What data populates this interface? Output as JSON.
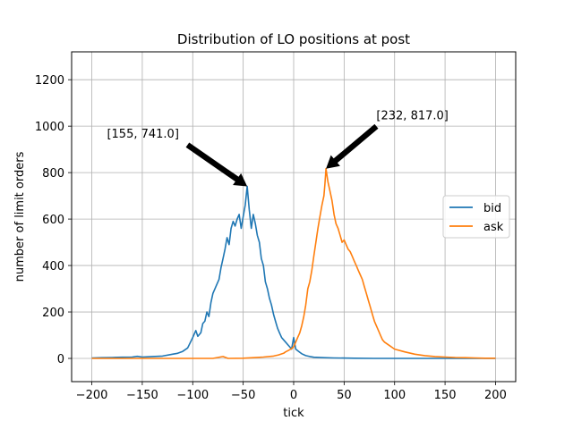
{
  "chart_data": {
    "type": "line",
    "title": "Distribution of LO positions at post",
    "xlabel": "tick",
    "ylabel": "number of limit orders",
    "xlim": [
      -220,
      220
    ],
    "ylim": [
      -100,
      1320
    ],
    "xticks": [
      -200,
      -150,
      -100,
      -50,
      0,
      50,
      100,
      150,
      200
    ],
    "yticks": [
      0,
      200,
      400,
      600,
      800,
      1000,
      1200
    ],
    "grid": true,
    "legend_position": "center-right",
    "series": [
      {
        "name": "bid",
        "color": "#1f77b4",
        "points": [
          [
            -200,
            2
          ],
          [
            -190,
            3
          ],
          [
            -180,
            4
          ],
          [
            -170,
            5
          ],
          [
            -160,
            6
          ],
          [
            -155,
            9
          ],
          [
            -150,
            6
          ],
          [
            -140,
            8
          ],
          [
            -130,
            10
          ],
          [
            -120,
            18
          ],
          [
            -115,
            22
          ],
          [
            -110,
            30
          ],
          [
            -105,
            45
          ],
          [
            -100,
            90
          ],
          [
            -97,
            120
          ],
          [
            -95,
            95
          ],
          [
            -92,
            110
          ],
          [
            -90,
            150
          ],
          [
            -88,
            160
          ],
          [
            -86,
            200
          ],
          [
            -84,
            180
          ],
          [
            -82,
            240
          ],
          [
            -80,
            280
          ],
          [
            -78,
            300
          ],
          [
            -76,
            320
          ],
          [
            -74,
            340
          ],
          [
            -72,
            390
          ],
          [
            -70,
            430
          ],
          [
            -68,
            470
          ],
          [
            -66,
            520
          ],
          [
            -64,
            490
          ],
          [
            -62,
            560
          ],
          [
            -60,
            590
          ],
          [
            -58,
            570
          ],
          [
            -56,
            600
          ],
          [
            -54,
            620
          ],
          [
            -52,
            560
          ],
          [
            -50,
            610
          ],
          [
            -48,
            660
          ],
          [
            -46,
            741
          ],
          [
            -44,
            640
          ],
          [
            -42,
            560
          ],
          [
            -40,
            620
          ],
          [
            -38,
            580
          ],
          [
            -36,
            530
          ],
          [
            -34,
            500
          ],
          [
            -32,
            430
          ],
          [
            -30,
            400
          ],
          [
            -28,
            330
          ],
          [
            -26,
            300
          ],
          [
            -24,
            260
          ],
          [
            -22,
            230
          ],
          [
            -20,
            190
          ],
          [
            -18,
            160
          ],
          [
            -16,
            130
          ],
          [
            -14,
            110
          ],
          [
            -12,
            90
          ],
          [
            -10,
            80
          ],
          [
            -8,
            70
          ],
          [
            -6,
            60
          ],
          [
            -4,
            50
          ],
          [
            -2,
            40
          ],
          [
            0,
            90
          ],
          [
            2,
            40
          ],
          [
            5,
            30
          ],
          [
            8,
            20
          ],
          [
            12,
            12
          ],
          [
            16,
            8
          ],
          [
            20,
            5
          ],
          [
            30,
            3
          ],
          [
            40,
            2
          ],
          [
            60,
            1
          ],
          [
            80,
            0
          ],
          [
            100,
            0
          ],
          [
            150,
            0
          ],
          [
            200,
            0
          ]
        ]
      },
      {
        "name": "ask",
        "color": "#ff7f0e",
        "points": [
          [
            -200,
            0
          ],
          [
            -150,
            0
          ],
          [
            -100,
            0
          ],
          [
            -80,
            0
          ],
          [
            -70,
            8
          ],
          [
            -65,
            0
          ],
          [
            -50,
            1
          ],
          [
            -40,
            3
          ],
          [
            -30,
            6
          ],
          [
            -20,
            10
          ],
          [
            -15,
            15
          ],
          [
            -10,
            22
          ],
          [
            -8,
            28
          ],
          [
            -5,
            35
          ],
          [
            -2,
            42
          ],
          [
            0,
            50
          ],
          [
            2,
            70
          ],
          [
            4,
            90
          ],
          [
            6,
            110
          ],
          [
            8,
            140
          ],
          [
            10,
            180
          ],
          [
            12,
            230
          ],
          [
            14,
            300
          ],
          [
            16,
            330
          ],
          [
            18,
            380
          ],
          [
            20,
            440
          ],
          [
            22,
            500
          ],
          [
            24,
            560
          ],
          [
            26,
            610
          ],
          [
            28,
            660
          ],
          [
            30,
            700
          ],
          [
            31,
            750
          ],
          [
            32,
            817
          ],
          [
            34,
            760
          ],
          [
            36,
            720
          ],
          [
            38,
            680
          ],
          [
            40,
            620
          ],
          [
            42,
            580
          ],
          [
            44,
            560
          ],
          [
            46,
            530
          ],
          [
            48,
            500
          ],
          [
            50,
            510
          ],
          [
            52,
            490
          ],
          [
            54,
            470
          ],
          [
            56,
            460
          ],
          [
            58,
            440
          ],
          [
            60,
            420
          ],
          [
            62,
            400
          ],
          [
            64,
            380
          ],
          [
            66,
            360
          ],
          [
            68,
            340
          ],
          [
            70,
            310
          ],
          [
            72,
            280
          ],
          [
            74,
            250
          ],
          [
            76,
            220
          ],
          [
            78,
            190
          ],
          [
            80,
            160
          ],
          [
            82,
            140
          ],
          [
            84,
            120
          ],
          [
            86,
            100
          ],
          [
            88,
            80
          ],
          [
            90,
            70
          ],
          [
            95,
            55
          ],
          [
            100,
            40
          ],
          [
            110,
            28
          ],
          [
            120,
            18
          ],
          [
            130,
            12
          ],
          [
            140,
            8
          ],
          [
            150,
            6
          ],
          [
            160,
            4
          ],
          [
            170,
            3
          ],
          [
            180,
            2
          ],
          [
            190,
            1
          ],
          [
            200,
            1
          ]
        ]
      }
    ],
    "annotations": [
      {
        "text": "[155, 741.0]",
        "point": [
          -46,
          741
        ],
        "text_pos": [
          -185,
          950
        ]
      },
      {
        "text": "[232, 817.0]",
        "point": [
          32,
          817
        ],
        "text_pos": [
          82,
          1030
        ]
      }
    ]
  }
}
